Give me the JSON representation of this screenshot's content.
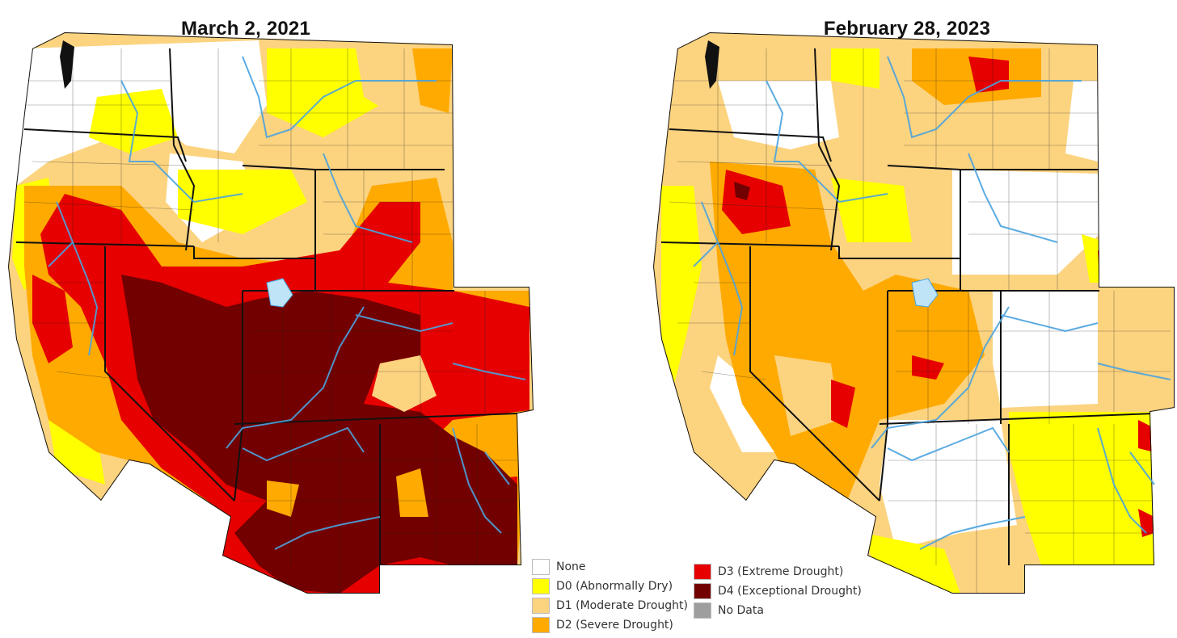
{
  "maps": [
    {
      "title": "March 2, 2021"
    },
    {
      "title": "February 28, 2023"
    }
  ],
  "legend": {
    "items": [
      {
        "label": "None",
        "color": "#ffffff"
      },
      {
        "label": "D0 (Abnormally Dry)",
        "color": "#ffff00"
      },
      {
        "label": "D1 (Moderate Drought)",
        "color": "#fcd37f"
      },
      {
        "label": "D2 (Severe Drought)",
        "color": "#ffaa00"
      },
      {
        "label": "D3 (Extreme Drought)",
        "color": "#e60000"
      },
      {
        "label": "D4 (Exceptional Drought)",
        "color": "#730000"
      },
      {
        "label": "No Data",
        "color": "#9e9e9e"
      }
    ]
  },
  "colors": {
    "none": "#ffffff",
    "d0": "#ffff00",
    "d1": "#fcd37f",
    "d2": "#ffaa00",
    "d3": "#e60000",
    "d4": "#730000",
    "water": "#4aa3df",
    "border": "#111111"
  }
}
